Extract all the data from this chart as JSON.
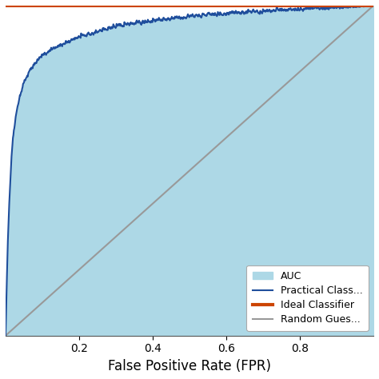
{
  "xlabel": "False Positive Rate (FPR)",
  "auc_fill_color": "#ADD8E6",
  "practical_color": "#1f4e9c",
  "ideal_color": "#cc4400",
  "random_color": "#999999",
  "practical_linewidth": 1.5,
  "ideal_linewidth": 3.0,
  "random_linewidth": 1.5,
  "xlim": [
    0,
    1.0
  ],
  "ylim": [
    0,
    1.0
  ],
  "xlabel_fontsize": 12,
  "legend_fontsize": 9,
  "tick_fontsize": 10,
  "bg_color": "#ffffff",
  "fpr_pts": [
    0.0,
    0.003,
    0.006,
    0.01,
    0.015,
    0.02,
    0.03,
    0.04,
    0.05,
    0.07,
    0.1,
    0.13,
    0.17,
    0.2,
    0.25,
    0.3,
    0.35,
    0.4,
    0.45,
    0.5,
    0.55,
    0.6,
    0.65,
    0.7,
    0.75,
    0.8,
    0.85,
    0.9,
    0.95,
    1.0
  ],
  "tpr_pts": [
    0.0,
    0.15,
    0.28,
    0.4,
    0.52,
    0.6,
    0.68,
    0.73,
    0.77,
    0.81,
    0.85,
    0.87,
    0.89,
    0.905,
    0.92,
    0.935,
    0.945,
    0.953,
    0.96,
    0.966,
    0.971,
    0.975,
    0.979,
    0.982,
    0.985,
    0.988,
    0.991,
    0.994,
    0.997,
    1.0
  ]
}
